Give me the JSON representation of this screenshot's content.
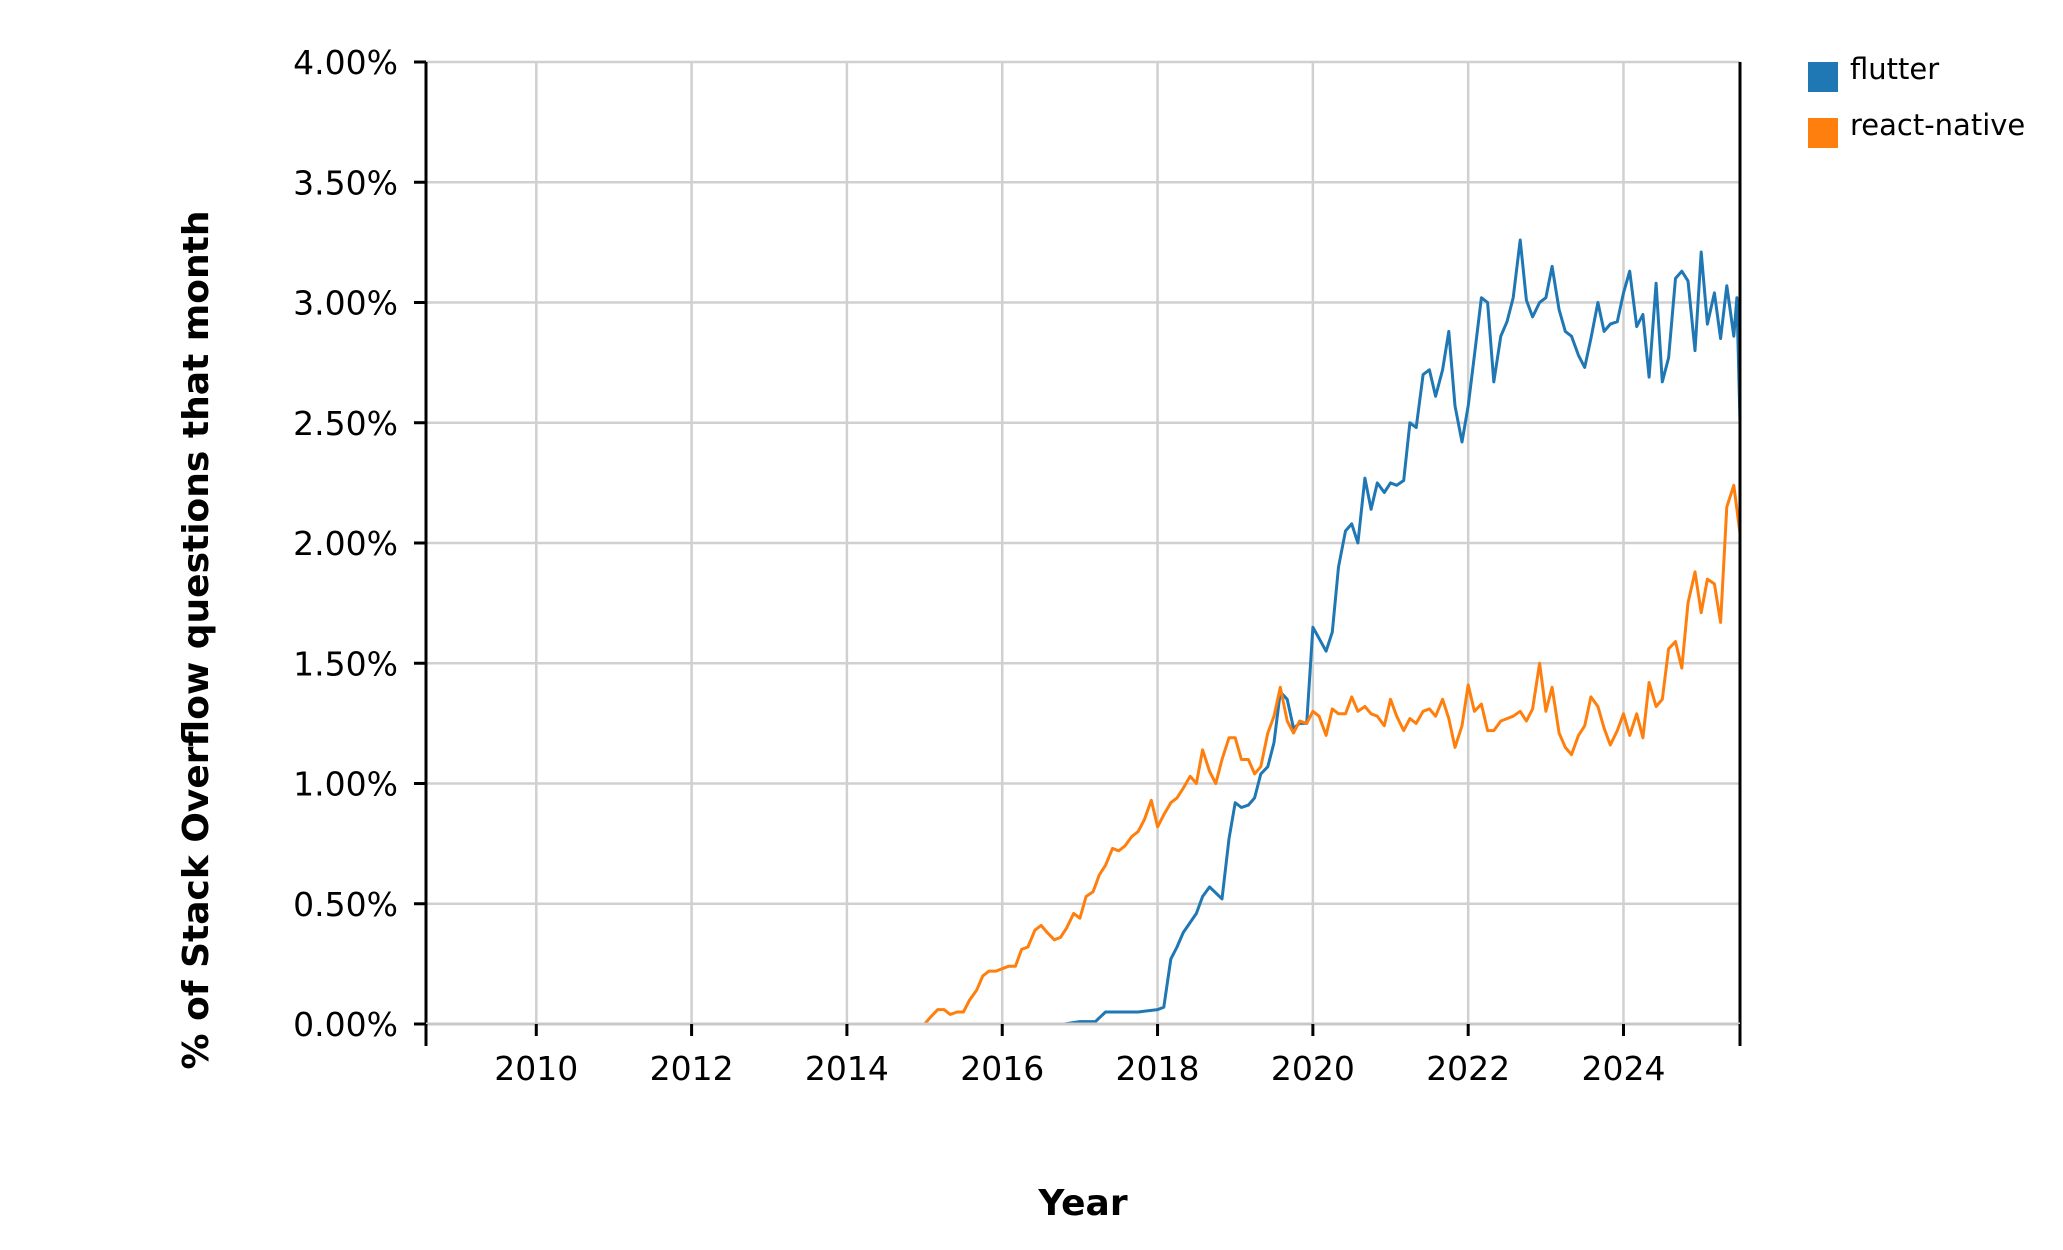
{
  "chart_data": {
    "type": "line",
    "title": "",
    "xlabel": "Year",
    "ylabel": "% of Stack Overflow questions that month",
    "x_ticks": [
      "2010",
      "2012",
      "2014",
      "2016",
      "2018",
      "2020",
      "2022",
      "2024"
    ],
    "y_ticks": [
      "0.00%",
      "0.50%",
      "1.00%",
      "1.50%",
      "2.00%",
      "2.50%",
      "3.00%",
      "3.50%",
      "4.00%"
    ],
    "xlim": [
      2008.58,
      2025.5
    ],
    "ylim": [
      0,
      4.0
    ],
    "grid": true,
    "legend_position": "right",
    "series": [
      {
        "name": "flutter",
        "color": "#1f77b4",
        "points": [
          [
            2008.58,
            0
          ],
          [
            2016.0,
            0
          ],
          [
            2016.8,
            0
          ],
          [
            2017.0,
            0.01
          ],
          [
            2017.2,
            0.01
          ],
          [
            2017.33,
            0.05
          ],
          [
            2017.5,
            0.05
          ],
          [
            2017.75,
            0.05
          ],
          [
            2018.0,
            0.06
          ],
          [
            2018.08,
            0.07
          ],
          [
            2018.17,
            0.27
          ],
          [
            2018.25,
            0.32
          ],
          [
            2018.33,
            0.38
          ],
          [
            2018.5,
            0.46
          ],
          [
            2018.58,
            0.53
          ],
          [
            2018.67,
            0.57
          ],
          [
            2018.83,
            0.52
          ],
          [
            2018.92,
            0.77
          ],
          [
            2019.0,
            0.92
          ],
          [
            2019.08,
            0.9
          ],
          [
            2019.17,
            0.91
          ],
          [
            2019.25,
            0.94
          ],
          [
            2019.33,
            1.04
          ],
          [
            2019.42,
            1.07
          ],
          [
            2019.5,
            1.17
          ],
          [
            2019.58,
            1.38
          ],
          [
            2019.67,
            1.35
          ],
          [
            2019.75,
            1.23
          ],
          [
            2019.83,
            1.25
          ],
          [
            2019.92,
            1.25
          ],
          [
            2020.0,
            1.65
          ],
          [
            2020.17,
            1.55
          ],
          [
            2020.25,
            1.63
          ],
          [
            2020.33,
            1.9
          ],
          [
            2020.42,
            2.05
          ],
          [
            2020.5,
            2.08
          ],
          [
            2020.58,
            2.0
          ],
          [
            2020.67,
            2.27
          ],
          [
            2020.75,
            2.14
          ],
          [
            2020.83,
            2.25
          ],
          [
            2020.92,
            2.21
          ],
          [
            2021.0,
            2.25
          ],
          [
            2021.08,
            2.24
          ],
          [
            2021.17,
            2.26
          ],
          [
            2021.25,
            2.5
          ],
          [
            2021.33,
            2.48
          ],
          [
            2021.42,
            2.7
          ],
          [
            2021.5,
            2.72
          ],
          [
            2021.58,
            2.61
          ],
          [
            2021.67,
            2.72
          ],
          [
            2021.75,
            2.88
          ],
          [
            2021.83,
            2.57
          ],
          [
            2021.92,
            2.42
          ],
          [
            2022.0,
            2.57
          ],
          [
            2022.08,
            2.78
          ],
          [
            2022.17,
            3.02
          ],
          [
            2022.25,
            3.0
          ],
          [
            2022.33,
            2.67
          ],
          [
            2022.42,
            2.86
          ],
          [
            2022.5,
            2.92
          ],
          [
            2022.58,
            3.02
          ],
          [
            2022.67,
            3.26
          ],
          [
            2022.75,
            3.01
          ],
          [
            2022.83,
            2.94
          ],
          [
            2022.92,
            3.0
          ],
          [
            2023.0,
            3.02
          ],
          [
            2023.08,
            3.15
          ],
          [
            2023.17,
            2.97
          ],
          [
            2023.25,
            2.88
          ],
          [
            2023.33,
            2.86
          ],
          [
            2023.42,
            2.78
          ],
          [
            2023.5,
            2.73
          ],
          [
            2023.58,
            2.85
          ],
          [
            2023.67,
            3.0
          ],
          [
            2023.75,
            2.88
          ],
          [
            2023.83,
            2.91
          ],
          [
            2023.92,
            2.92
          ],
          [
            2024.0,
            3.04
          ],
          [
            2024.08,
            3.13
          ],
          [
            2024.17,
            2.9
          ],
          [
            2024.25,
            2.95
          ],
          [
            2024.33,
            2.69
          ],
          [
            2024.42,
            3.08
          ],
          [
            2024.5,
            2.67
          ],
          [
            2024.58,
            2.77
          ],
          [
            2024.67,
            3.1
          ],
          [
            2024.75,
            3.13
          ],
          [
            2024.83,
            3.09
          ],
          [
            2024.92,
            2.8
          ],
          [
            2025.0,
            3.21
          ],
          [
            2025.08,
            2.91
          ],
          [
            2025.17,
            3.04
          ],
          [
            2025.25,
            2.85
          ],
          [
            2025.33,
            3.07
          ],
          [
            2025.42,
            2.86
          ],
          [
            2025.46,
            3.02
          ],
          [
            2025.5,
            2.5
          ]
        ]
      },
      {
        "name": "react-native",
        "color": "#ff7f0e",
        "points": [
          [
            2008.58,
            0
          ],
          [
            2015.0,
            0
          ],
          [
            2015.08,
            0.03
          ],
          [
            2015.17,
            0.06
          ],
          [
            2015.25,
            0.06
          ],
          [
            2015.33,
            0.04
          ],
          [
            2015.42,
            0.05
          ],
          [
            2015.5,
            0.05
          ],
          [
            2015.58,
            0.1
          ],
          [
            2015.67,
            0.14
          ],
          [
            2015.75,
            0.2
          ],
          [
            2015.83,
            0.22
          ],
          [
            2015.92,
            0.22
          ],
          [
            2016.0,
            0.23
          ],
          [
            2016.08,
            0.24
          ],
          [
            2016.17,
            0.24
          ],
          [
            2016.25,
            0.31
          ],
          [
            2016.33,
            0.32
          ],
          [
            2016.42,
            0.39
          ],
          [
            2016.5,
            0.41
          ],
          [
            2016.58,
            0.38
          ],
          [
            2016.67,
            0.35
          ],
          [
            2016.75,
            0.36
          ],
          [
            2016.83,
            0.4
          ],
          [
            2016.92,
            0.46
          ],
          [
            2017.0,
            0.44
          ],
          [
            2017.08,
            0.53
          ],
          [
            2017.17,
            0.55
          ],
          [
            2017.25,
            0.62
          ],
          [
            2017.33,
            0.66
          ],
          [
            2017.42,
            0.73
          ],
          [
            2017.5,
            0.72
          ],
          [
            2017.58,
            0.74
          ],
          [
            2017.67,
            0.78
          ],
          [
            2017.75,
            0.8
          ],
          [
            2017.83,
            0.85
          ],
          [
            2017.92,
            0.93
          ],
          [
            2018.0,
            0.82
          ],
          [
            2018.08,
            0.87
          ],
          [
            2018.17,
            0.92
          ],
          [
            2018.25,
            0.94
          ],
          [
            2018.33,
            0.98
          ],
          [
            2018.42,
            1.03
          ],
          [
            2018.5,
            1.0
          ],
          [
            2018.58,
            1.14
          ],
          [
            2018.67,
            1.05
          ],
          [
            2018.75,
            1.0
          ],
          [
            2018.83,
            1.1
          ],
          [
            2018.92,
            1.19
          ],
          [
            2019.0,
            1.19
          ],
          [
            2019.08,
            1.1
          ],
          [
            2019.17,
            1.1
          ],
          [
            2019.25,
            1.04
          ],
          [
            2019.33,
            1.07
          ],
          [
            2019.42,
            1.21
          ],
          [
            2019.5,
            1.28
          ],
          [
            2019.58,
            1.4
          ],
          [
            2019.67,
            1.26
          ],
          [
            2019.75,
            1.21
          ],
          [
            2019.83,
            1.26
          ],
          [
            2019.92,
            1.25
          ],
          [
            2020.0,
            1.3
          ],
          [
            2020.08,
            1.28
          ],
          [
            2020.17,
            1.2
          ],
          [
            2020.25,
            1.31
          ],
          [
            2020.33,
            1.29
          ],
          [
            2020.42,
            1.29
          ],
          [
            2020.5,
            1.36
          ],
          [
            2020.58,
            1.3
          ],
          [
            2020.67,
            1.32
          ],
          [
            2020.75,
            1.29
          ],
          [
            2020.83,
            1.28
          ],
          [
            2020.92,
            1.24
          ],
          [
            2021.0,
            1.35
          ],
          [
            2021.08,
            1.28
          ],
          [
            2021.17,
            1.22
          ],
          [
            2021.25,
            1.27
          ],
          [
            2021.33,
            1.25
          ],
          [
            2021.42,
            1.3
          ],
          [
            2021.5,
            1.31
          ],
          [
            2021.58,
            1.28
          ],
          [
            2021.67,
            1.35
          ],
          [
            2021.75,
            1.27
          ],
          [
            2021.83,
            1.15
          ],
          [
            2021.92,
            1.24
          ],
          [
            2022.0,
            1.41
          ],
          [
            2022.08,
            1.3
          ],
          [
            2022.17,
            1.33
          ],
          [
            2022.25,
            1.22
          ],
          [
            2022.33,
            1.22
          ],
          [
            2022.42,
            1.26
          ],
          [
            2022.5,
            1.27
          ],
          [
            2022.58,
            1.28
          ],
          [
            2022.67,
            1.3
          ],
          [
            2022.75,
            1.26
          ],
          [
            2022.83,
            1.31
          ],
          [
            2022.92,
            1.5
          ],
          [
            2023.0,
            1.3
          ],
          [
            2023.08,
            1.4
          ],
          [
            2023.17,
            1.21
          ],
          [
            2023.25,
            1.15
          ],
          [
            2023.33,
            1.12
          ],
          [
            2023.42,
            1.2
          ],
          [
            2023.5,
            1.24
          ],
          [
            2023.58,
            1.36
          ],
          [
            2023.67,
            1.32
          ],
          [
            2023.75,
            1.23
          ],
          [
            2023.83,
            1.16
          ],
          [
            2023.92,
            1.22
          ],
          [
            2024.0,
            1.29
          ],
          [
            2024.08,
            1.2
          ],
          [
            2024.17,
            1.29
          ],
          [
            2024.25,
            1.19
          ],
          [
            2024.33,
            1.42
          ],
          [
            2024.42,
            1.32
          ],
          [
            2024.5,
            1.35
          ],
          [
            2024.58,
            1.56
          ],
          [
            2024.67,
            1.59
          ],
          [
            2024.75,
            1.48
          ],
          [
            2024.83,
            1.75
          ],
          [
            2024.92,
            1.88
          ],
          [
            2025.0,
            1.71
          ],
          [
            2025.08,
            1.85
          ],
          [
            2025.17,
            1.83
          ],
          [
            2025.25,
            1.67
          ],
          [
            2025.33,
            2.15
          ],
          [
            2025.42,
            2.24
          ],
          [
            2025.5,
            2.04
          ]
        ]
      }
    ]
  }
}
